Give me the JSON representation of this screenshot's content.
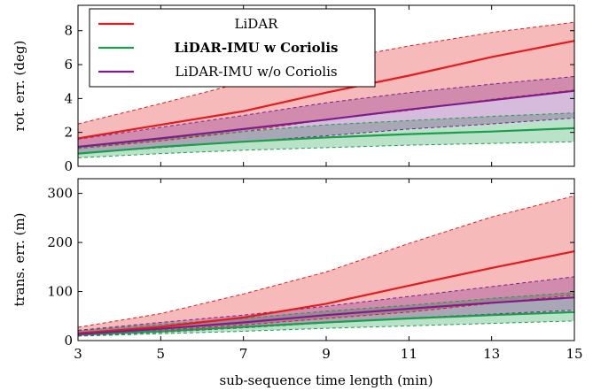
{
  "chart_data": [
    {
      "type": "line",
      "x": [
        3,
        5,
        7,
        9,
        11,
        13,
        15
      ],
      "xlim": [
        3,
        15
      ],
      "ylim": [
        0,
        9.5
      ],
      "yticks": [
        0,
        2,
        4,
        6,
        8
      ],
      "xticks": [],
      "ylabel": "rot. err. (deg)",
      "xlabel": "",
      "series": [
        {
          "name": "LiDAR",
          "color": "#e41a1c",
          "mean": [
            1.65,
            2.45,
            3.25,
            4.35,
            5.35,
            6.45,
            7.4
          ],
          "upper": [
            2.5,
            3.7,
            4.95,
            6.2,
            7.1,
            7.9,
            8.5
          ],
          "lower": [
            1.05,
            1.5,
            2.05,
            2.75,
            3.3,
            3.95,
            4.5
          ]
        },
        {
          "name": "LiDAR-IMU w Coriolis",
          "bold": true,
          "color": "#1b9e4b",
          "mean": [
            0.75,
            1.15,
            1.45,
            1.7,
            1.9,
            2.05,
            2.25
          ],
          "upper": [
            1.05,
            1.6,
            2.05,
            2.45,
            2.7,
            2.95,
            3.15
          ],
          "lower": [
            0.5,
            0.75,
            0.95,
            1.1,
            1.25,
            1.35,
            1.45
          ]
        },
        {
          "name": "LiDAR-IMU w/o Coriolis",
          "color": "#7b1e8c",
          "mean": [
            1.15,
            1.65,
            2.2,
            2.75,
            3.35,
            3.9,
            4.45
          ],
          "upper": [
            1.6,
            2.3,
            3.0,
            3.75,
            4.35,
            4.85,
            5.3
          ],
          "lower": [
            0.75,
            1.1,
            1.45,
            1.8,
            2.2,
            2.5,
            2.85
          ]
        }
      ],
      "legend": {
        "placement": "top-left",
        "entries": [
          "LiDAR",
          "LiDAR-IMU w Coriolis",
          "LiDAR-IMU w/o Coriolis"
        ]
      }
    },
    {
      "type": "line",
      "x": [
        3,
        5,
        7,
        9,
        11,
        13,
        15
      ],
      "xlim": [
        3,
        15
      ],
      "ylim": [
        0,
        330
      ],
      "yticks": [
        0,
        100,
        200,
        300
      ],
      "xticks": [
        3,
        5,
        7,
        9,
        11,
        13,
        15
      ],
      "ylabel": "trans. err. (m)",
      "xlabel": "sub-sequence time length (min)",
      "series": [
        {
          "name": "LiDAR",
          "color": "#e41a1c",
          "mean": [
            15,
            28,
            47,
            75,
            112,
            148,
            182
          ],
          "upper": [
            27,
            55,
            95,
            140,
            198,
            252,
            295
          ],
          "lower": [
            12,
            21,
            32,
            45,
            58,
            76,
            93
          ]
        },
        {
          "name": "LiDAR-IMU w Coriolis",
          "color": "#1b9e4b",
          "mean": [
            12,
            19,
            28,
            37,
            45,
            52,
            58
          ],
          "upper": [
            20,
            33,
            45,
            60,
            72,
            86,
            98
          ],
          "lower": [
            9,
            14,
            19,
            25,
            30,
            35,
            40
          ]
        },
        {
          "name": "LiDAR-IMU w/o Coriolis",
          "color": "#7b1e8c",
          "mean": [
            13,
            24,
            37,
            52,
            65,
            77,
            88
          ],
          "upper": [
            21,
            37,
            52,
            70,
            90,
            110,
            130
          ],
          "lower": [
            10,
            17,
            26,
            36,
            46,
            54,
            62
          ]
        }
      ]
    }
  ]
}
